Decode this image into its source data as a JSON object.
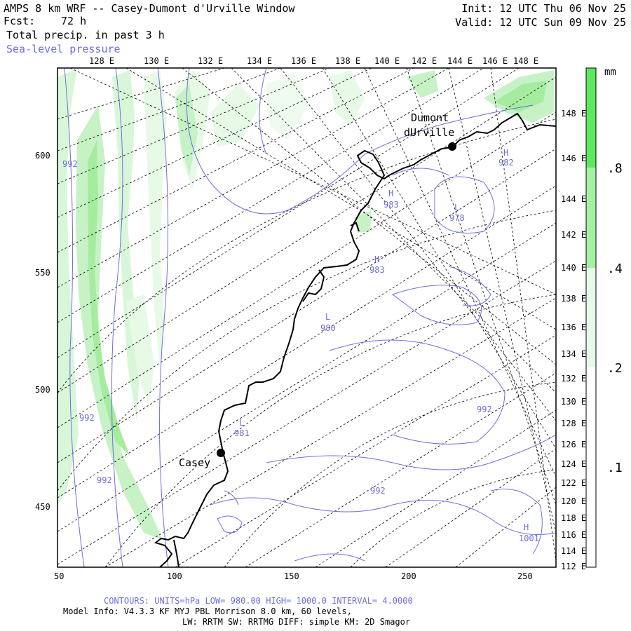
{
  "header": {
    "title": "AMPS 8 km WRF -- Casey-Dumont d'Urville Window",
    "forecast_label": "Fcst:",
    "forecast_value": "72 h",
    "field_primary": "Total precip. in past 3 h",
    "field_secondary": "Sea-level pressure",
    "init_text": "Init: 12 UTC Thu 06 Nov 25",
    "valid_text": "Valid: 12 UTC Sun 09 Nov 25"
  },
  "axes": {
    "top_longitudes": [
      "128 E",
      "130 E",
      "132 E",
      "134 E",
      "136 E",
      "138 E",
      "140 E",
      "142 E",
      "144 E",
      "146 E",
      "148 E"
    ],
    "right_longitudes": [
      "148 E",
      "146 E",
      "144 E",
      "142 E",
      "140 E",
      "138 E",
      "136 E",
      "134 E",
      "132 E",
      "130 E",
      "128 E",
      "126 E",
      "124 E",
      "122 E",
      "120 E",
      "118 E",
      "116 E",
      "114 E",
      "112 E"
    ],
    "left_values": [
      "600",
      "550",
      "500",
      "450"
    ],
    "bottom_values": [
      "50",
      "100",
      "150",
      "200",
      "250"
    ]
  },
  "stations": {
    "dumont_line1": "Dumont",
    "dumont_line2": "dUrville",
    "casey": "Casey"
  },
  "pressure_labels": {
    "h1": "H",
    "h1_val": "982",
    "h2": "H",
    "h2_val": "983",
    "h3": "H",
    "h3_val": "983",
    "l1": "L",
    "l1_val": "978",
    "l2": "L",
    "l2_val": "980",
    "l3": "L",
    "l3_val": "981",
    "h4": "H",
    "h4_val": "1001",
    "c1": "992",
    "c2": "992",
    "c3": "992",
    "c4": "992",
    "c5": "992"
  },
  "colorbar": {
    "units": "mm",
    "labels": [
      ".8",
      ".4",
      ".2",
      ".1"
    ],
    "colors": {
      "top": "#5ee65e",
      "mid": "#a6f0a6",
      "low": "#e6fae6",
      "base": "#ffffff"
    }
  },
  "footer": {
    "contours": "CONTOURS: UNITS=hPa LOW= 980.00 HIGH= 1000.0 INTERVAL= 4.0000",
    "model_info": "Model Info: V4.3.3 KF MYJ PBL Morrison 8.0 km, 60 levels,",
    "physics": "LW: RRTM SW: RRTMG DIFF: simple KM: 2D Smagor"
  },
  "colors": {
    "contour": "#6e6ee0",
    "coast": "#000000",
    "grid": "#000000"
  }
}
